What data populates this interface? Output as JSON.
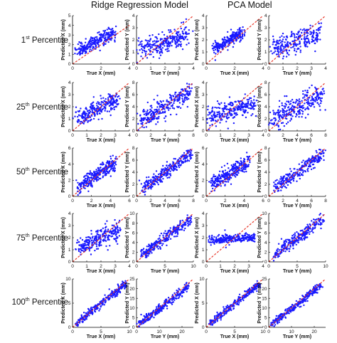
{
  "figure": {
    "column_titles": [
      "Ridge Regression Model",
      "PCA Model"
    ],
    "row_labels": [
      {
        "num": "1",
        "suffix": "st",
        "word": "Percentile"
      },
      {
        "num": "25",
        "suffix": "th",
        "word": "Percentile"
      },
      {
        "num": "50",
        "suffix": "th",
        "word": "Percentile"
      },
      {
        "num": "75",
        "suffix": "th",
        "word": "Percentile"
      },
      {
        "num": "100",
        "suffix": "th",
        "word": "Percentile"
      }
    ],
    "colors": {
      "points": "#1a1aff",
      "identity_line": "#e8392b",
      "axis": "#000000"
    }
  },
  "chart_data": [
    {
      "type": "scatter",
      "model": "Ridge Regression Model",
      "row": "1st Percentile",
      "xlabel": "True X (mm)",
      "ylabel": "Predicted X (mm)",
      "xlim": [
        0,
        4
      ],
      "ylim": [
        0,
        5
      ],
      "xticks": [
        0,
        2,
        4
      ],
      "yticks": [
        0,
        1,
        2,
        3,
        4,
        5
      ],
      "trend": {
        "x": [
          0,
          2.8
        ],
        "y": [
          1.0,
          3.2
        ]
      },
      "spread": 0.35,
      "x_range": [
        0.4,
        2.9
      ],
      "n": 260,
      "reference_line": "y = x"
    },
    {
      "type": "scatter",
      "model": "Ridge Regression Model",
      "row": "1st Percentile",
      "xlabel": "True Y (mm)",
      "ylabel": "Predicted Y (mm)",
      "xlim": [
        0,
        4
      ],
      "ylim": [
        0,
        4
      ],
      "xticks": [
        0,
        1,
        2,
        3,
        4
      ],
      "yticks": [
        0,
        1,
        2,
        3,
        4
      ],
      "trend": {
        "x": [
          0,
          3.6
        ],
        "y": [
          1.0,
          2.5
        ]
      },
      "spread": 0.45,
      "x_range": [
        0.2,
        3.6
      ],
      "n": 260,
      "reference_line": "y = x"
    },
    {
      "type": "scatter",
      "model": "PCA Model",
      "row": "1st Percentile",
      "xlabel": "True X (mm)",
      "ylabel": "Predicted X (mm)",
      "xlim": [
        0,
        4
      ],
      "ylim": [
        0,
        4
      ],
      "xticks": [
        0,
        2,
        4
      ],
      "yticks": [
        0,
        1,
        2,
        3,
        4
      ],
      "trend": {
        "x": [
          0,
          2.6
        ],
        "y": [
          1.0,
          2.6
        ]
      },
      "spread": 0.25,
      "x_range": [
        0.5,
        2.6
      ],
      "n": 240,
      "reference_line": "y = x"
    },
    {
      "type": "scatter",
      "model": "PCA Model",
      "row": "1st Percentile",
      "xlabel": "True Y (mm)",
      "ylabel": "Predicted Y (mm)",
      "xlim": [
        0,
        4
      ],
      "ylim": [
        0,
        4
      ],
      "xticks": [
        0,
        1,
        2,
        3,
        4
      ],
      "yticks": [
        0,
        1,
        2,
        3,
        4
      ],
      "trend": {
        "x": [
          0,
          3.6
        ],
        "y": [
          1.1,
          2.5
        ]
      },
      "spread": 0.45,
      "x_range": [
        0.2,
        3.6
      ],
      "n": 260,
      "reference_line": "y = x"
    },
    {
      "type": "scatter",
      "model": "Ridge Regression Model",
      "row": "25th Percentile",
      "xlabel": "True X (mm)",
      "ylabel": "Predicted X (mm)",
      "xlim": [
        0,
        4
      ],
      "ylim": [
        0,
        4
      ],
      "xticks": [
        0,
        1,
        2,
        3,
        4
      ],
      "yticks": [
        0,
        1,
        2,
        3,
        4
      ],
      "trend": {
        "x": [
          0,
          3.2
        ],
        "y": [
          0.8,
          2.7
        ]
      },
      "spread": 0.4,
      "x_range": [
        0.3,
        3.2
      ],
      "n": 260,
      "reference_line": "y = x"
    },
    {
      "type": "scatter",
      "model": "Ridge Regression Model",
      "row": "25th Percentile",
      "xlabel": "True Y (mm)",
      "ylabel": "Predicted Y (mm)",
      "xlim": [
        0,
        8
      ],
      "ylim": [
        0,
        8
      ],
      "xticks": [
        0,
        2,
        4,
        6,
        8
      ],
      "yticks": [
        0,
        2,
        4,
        6,
        8
      ],
      "trend": {
        "x": [
          0,
          7.6
        ],
        "y": [
          1.2,
          6.6
        ]
      },
      "spread": 0.8,
      "x_range": [
        0.5,
        7.6
      ],
      "n": 280,
      "reference_line": "y = x"
    },
    {
      "type": "scatter",
      "model": "PCA Model",
      "row": "25th Percentile",
      "xlabel": "True X (mm)",
      "ylabel": "Predicted X (mm)",
      "xlim": [
        0,
        4
      ],
      "ylim": [
        0,
        4
      ],
      "xticks": [
        0,
        1,
        2,
        3,
        4
      ],
      "yticks": [
        0,
        1,
        2,
        3,
        4
      ],
      "trend": {
        "x": [
          0,
          3.4
        ],
        "y": [
          1.2,
          2.2
        ]
      },
      "spread": 0.4,
      "x_range": [
        0.2,
        3.4
      ],
      "n": 260,
      "reference_line": "y = x"
    },
    {
      "type": "scatter",
      "model": "PCA Model",
      "row": "25th Percentile",
      "xlabel": "True Y (mm)",
      "ylabel": "Predicted Y (mm)",
      "xlim": [
        0,
        8
      ],
      "ylim": [
        0,
        8
      ],
      "xticks": [
        0,
        2,
        4,
        6,
        8
      ],
      "yticks": [
        0,
        2,
        4,
        6,
        8
      ],
      "trend": {
        "x": [
          0,
          7.6
        ],
        "y": [
          1.4,
          6.2
        ]
      },
      "spread": 1.0,
      "x_range": [
        0.5,
        7.6
      ],
      "n": 280,
      "reference_line": "y = x"
    },
    {
      "type": "scatter",
      "model": "Ridge Regression Model",
      "row": "50th Percentile",
      "xlabel": "True X (mm)",
      "ylabel": "Predicted X (mm)",
      "xlim": [
        0,
        6
      ],
      "ylim": [
        0,
        6
      ],
      "xticks": [
        0,
        2,
        4,
        6
      ],
      "yticks": [
        0,
        2,
        4,
        6
      ],
      "trend": {
        "x": [
          0,
          4.5
        ],
        "y": [
          0.8,
          4.2
        ]
      },
      "spread": 0.45,
      "x_range": [
        0.6,
        4.5
      ],
      "n": 280,
      "reference_line": "y = x"
    },
    {
      "type": "scatter",
      "model": "Ridge Regression Model",
      "row": "50th Percentile",
      "xlabel": "True Y (mm)",
      "ylabel": "Predicted Y (mm)",
      "xlim": [
        0,
        8
      ],
      "ylim": [
        0,
        8
      ],
      "xticks": [
        0,
        2,
        4,
        6,
        8
      ],
      "yticks": [
        0,
        2,
        4,
        6,
        8
      ],
      "trend": {
        "x": [
          0,
          7.8
        ],
        "y": [
          0.6,
          7.2
        ]
      },
      "spread": 0.55,
      "x_range": [
        0.8,
        7.8
      ],
      "n": 280,
      "reference_line": "y = x"
    },
    {
      "type": "scatter",
      "model": "PCA Model",
      "row": "50th Percentile",
      "xlabel": "True X (mm)",
      "ylabel": "Predicted X (mm)",
      "xlim": [
        0,
        6
      ],
      "ylim": [
        0,
        6
      ],
      "xticks": [
        0,
        2,
        4,
        6
      ],
      "yticks": [
        0,
        2,
        4,
        6
      ],
      "trend": {
        "x": [
          0,
          4.4
        ],
        "y": [
          1.0,
          4.3
        ]
      },
      "spread": 0.45,
      "x_range": [
        0.6,
        4.4
      ],
      "n": 280,
      "reference_line": "y = x"
    },
    {
      "type": "scatter",
      "model": "PCA Model",
      "row": "50th Percentile",
      "xlabel": "True Y (mm)",
      "ylabel": "Predicted Y (mm)",
      "xlim": [
        0,
        8
      ],
      "ylim": [
        0,
        8
      ],
      "xticks": [
        0,
        2,
        4,
        6,
        8
      ],
      "yticks": [
        0,
        2,
        4,
        6,
        8
      ],
      "trend": {
        "x": [
          0,
          7.8
        ],
        "y": [
          0.6,
          7.2
        ]
      },
      "spread": 0.55,
      "x_range": [
        0.8,
        7.8
      ],
      "n": 280,
      "reference_line": "y = x"
    },
    {
      "type": "scatter",
      "model": "Ridge Regression Model",
      "row": "75th Percentile",
      "xlabel": "True X (mm)",
      "ylabel": "Predicted X (mm)",
      "xlim": [
        0,
        4
      ],
      "ylim": [
        0,
        4
      ],
      "xticks": [
        0,
        1,
        2,
        3,
        4
      ],
      "yticks": [
        0,
        1,
        2,
        3,
        4
      ],
      "trend": {
        "x": [
          0,
          3.3
        ],
        "y": [
          1.0,
          2.7
        ]
      },
      "spread": 0.4,
      "x_range": [
        0.3,
        3.3
      ],
      "n": 270,
      "reference_line": "y = x"
    },
    {
      "type": "scatter",
      "model": "Ridge Regression Model",
      "row": "75th Percentile",
      "xlabel": "True Y (mm)",
      "ylabel": "Predicted Y (mm)",
      "xlim": [
        0,
        10
      ],
      "ylim": [
        0,
        10
      ],
      "xticks": [
        0,
        5,
        10
      ],
      "yticks": [
        0,
        2,
        4,
        6,
        8,
        10
      ],
      "trend": {
        "x": [
          0,
          9.6
        ],
        "y": [
          0.6,
          8.8
        ]
      },
      "spread": 0.6,
      "x_range": [
        0.8,
        9.6
      ],
      "n": 280,
      "reference_line": "y = x"
    },
    {
      "type": "scatter",
      "model": "PCA Model",
      "row": "75th Percentile",
      "xlabel": "True X (mm)",
      "ylabel": "Predicted X (mm)",
      "xlim": [
        0,
        4
      ],
      "ylim": [
        0,
        4
      ],
      "xticks": [
        0,
        1,
        2,
        3,
        4
      ],
      "yticks": [
        0,
        1,
        2,
        3,
        4
      ],
      "trend": {
        "x": [
          0,
          3.4
        ],
        "y": [
          1.8,
          2.0
        ]
      },
      "spread": 0.18,
      "x_range": [
        0.2,
        3.4
      ],
      "n": 260,
      "reference_line": "y = x"
    },
    {
      "type": "scatter",
      "model": "PCA Model",
      "row": "75th Percentile",
      "xlabel": "True Y (mm)",
      "ylabel": "Predicted Y (mm)",
      "xlim": [
        0,
        10
      ],
      "ylim": [
        0,
        10
      ],
      "xticks": [
        0,
        5,
        10
      ],
      "yticks": [
        0,
        2,
        4,
        6,
        8,
        10
      ],
      "trend": {
        "x": [
          0,
          9.6
        ],
        "y": [
          0.6,
          8.8
        ]
      },
      "spread": 0.6,
      "x_range": [
        0.8,
        9.6
      ],
      "n": 280,
      "reference_line": "y = x"
    },
    {
      "type": "scatter",
      "model": "Ridge Regression Model",
      "row": "100th Percentile",
      "xlabel": "True X (mm)",
      "ylabel": "Predicted X (mm)",
      "xlim": [
        0,
        10
      ],
      "ylim": [
        0,
        10
      ],
      "xticks": [
        0,
        5,
        10
      ],
      "yticks": [
        0,
        5,
        10
      ],
      "trend": {
        "x": [
          0,
          9.4
        ],
        "y": [
          0.2,
          9.0
        ]
      },
      "spread": 0.4,
      "x_range": [
        0.6,
        9.4
      ],
      "n": 280,
      "reference_line": "y = x"
    },
    {
      "type": "scatter",
      "model": "Ridge Regression Model",
      "row": "100th Percentile",
      "xlabel": "True Y (mm)",
      "ylabel": "Predicted Y (mm)",
      "xlim": [
        0,
        25
      ],
      "ylim": [
        0,
        25
      ],
      "xticks": [
        0,
        10,
        20
      ],
      "yticks": [
        0,
        5,
        10,
        15,
        20,
        25
      ],
      "trend": {
        "x": [
          0,
          23
        ],
        "y": [
          0.5,
          21.5
        ]
      },
      "spread": 1.0,
      "x_range": [
        1.0,
        23
      ],
      "n": 280,
      "reference_line": "y = x"
    },
    {
      "type": "scatter",
      "model": "PCA Model",
      "row": "100th Percentile",
      "xlabel": "True X (mm)",
      "ylabel": "Predicted X (mm)",
      "xlim": [
        0,
        10
      ],
      "ylim": [
        0,
        10
      ],
      "xticks": [
        0,
        5,
        10
      ],
      "yticks": [
        0,
        5,
        10
      ],
      "trend": {
        "x": [
          0,
          9.4
        ],
        "y": [
          0.2,
          9.0
        ]
      },
      "spread": 0.4,
      "x_range": [
        0.6,
        9.4
      ],
      "n": 280,
      "reference_line": "y = x"
    },
    {
      "type": "scatter",
      "model": "PCA Model",
      "row": "100th Percentile",
      "xlabel": "True Y (mm)",
      "ylabel": "Predicted Y (mm)",
      "xlim": [
        0,
        25
      ],
      "ylim": [
        0,
        25
      ],
      "xticks": [
        0,
        10,
        20
      ],
      "yticks": [
        0,
        5,
        10,
        15,
        20,
        25
      ],
      "trend": {
        "x": [
          0,
          23
        ],
        "y": [
          0.5,
          21.5
        ]
      },
      "spread": 1.0,
      "x_range": [
        1.0,
        23
      ],
      "n": 280,
      "reference_line": "y = x"
    }
  ]
}
